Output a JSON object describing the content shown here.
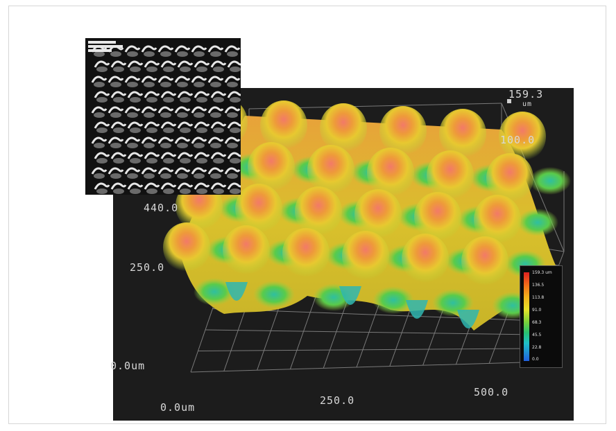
{
  "figure": {
    "colors": {
      "plot_background": "#1c1c1c",
      "grid": "#8a8a8a",
      "label_text": "#d8d8d8"
    }
  },
  "surface_plot": {
    "z_max_value": "159.3",
    "z_max_unit": "um",
    "z_tick": "100.0",
    "y_ticks": [
      "440.0",
      "250.0"
    ],
    "origin_y_label": "0.0um",
    "origin_x_label": "0.0um",
    "x_ticks": [
      "250.0",
      "500.0"
    ],
    "colormap": "rainbow (blue low, red high)"
  },
  "legend": {
    "ticks": [
      "159.3 um",
      "136.5",
      "113.8",
      "91.0",
      "68.3",
      "45.5",
      "22.8",
      "0.0"
    ]
  },
  "inset": {
    "description_kind": "SEM micrograph (grayscale) of periodic microstructure array"
  }
}
